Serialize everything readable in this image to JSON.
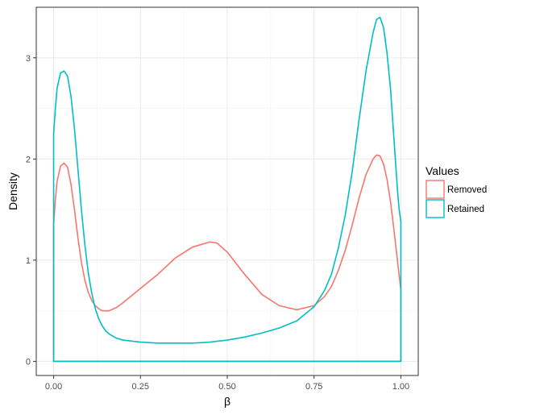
{
  "chart_data": {
    "type": "area",
    "title": "",
    "xlabel": "β",
    "ylabel": "Density",
    "xlim": [
      -0.05,
      1.05
    ],
    "ylim": [
      -0.14,
      3.5
    ],
    "xticks": [
      0.0,
      0.25,
      0.5,
      0.75,
      1.0
    ],
    "xtick_labels": [
      "0.00",
      "0.25",
      "0.50",
      "0.75",
      "1.00"
    ],
    "yticks": [
      0,
      1,
      2,
      3
    ],
    "ytick_labels": [
      "0",
      "1",
      "2",
      "3"
    ],
    "grid": true,
    "legend": {
      "title": "Values",
      "position": "right"
    },
    "series": [
      {
        "name": "Removed",
        "color": "#F8766D",
        "x": [
          0.0,
          0.005,
          0.01,
          0.02,
          0.03,
          0.04,
          0.05,
          0.06,
          0.07,
          0.08,
          0.09,
          0.1,
          0.11,
          0.12,
          0.13,
          0.14,
          0.16,
          0.18,
          0.2,
          0.25,
          0.3,
          0.35,
          0.4,
          0.45,
          0.47,
          0.5,
          0.55,
          0.6,
          0.65,
          0.7,
          0.75,
          0.78,
          0.8,
          0.82,
          0.84,
          0.86,
          0.88,
          0.9,
          0.92,
          0.93,
          0.94,
          0.95,
          0.96,
          0.97,
          0.98,
          0.99,
          0.995,
          1.0
        ],
        "y": [
          1.35,
          1.6,
          1.78,
          1.93,
          1.96,
          1.92,
          1.75,
          1.5,
          1.22,
          0.98,
          0.8,
          0.68,
          0.6,
          0.55,
          0.52,
          0.5,
          0.5,
          0.53,
          0.58,
          0.72,
          0.86,
          1.02,
          1.13,
          1.18,
          1.17,
          1.08,
          0.86,
          0.66,
          0.55,
          0.51,
          0.55,
          0.64,
          0.74,
          0.9,
          1.1,
          1.35,
          1.62,
          1.85,
          2.0,
          2.04,
          2.03,
          1.95,
          1.8,
          1.58,
          1.3,
          1.0,
          0.85,
          0.7
        ]
      },
      {
        "name": "Retained",
        "color": "#00BFC4",
        "x": [
          0.0,
          0.005,
          0.01,
          0.02,
          0.03,
          0.04,
          0.05,
          0.06,
          0.07,
          0.08,
          0.09,
          0.1,
          0.11,
          0.12,
          0.13,
          0.14,
          0.15,
          0.16,
          0.18,
          0.2,
          0.25,
          0.3,
          0.35,
          0.4,
          0.45,
          0.5,
          0.55,
          0.6,
          0.65,
          0.7,
          0.75,
          0.78,
          0.8,
          0.82,
          0.84,
          0.86,
          0.88,
          0.9,
          0.92,
          0.93,
          0.94,
          0.95,
          0.96,
          0.97,
          0.98,
          0.99,
          0.995,
          1.0
        ],
        "y": [
          2.25,
          2.5,
          2.7,
          2.85,
          2.87,
          2.82,
          2.62,
          2.3,
          1.9,
          1.5,
          1.15,
          0.87,
          0.67,
          0.52,
          0.42,
          0.35,
          0.3,
          0.27,
          0.23,
          0.21,
          0.19,
          0.18,
          0.18,
          0.18,
          0.19,
          0.21,
          0.24,
          0.28,
          0.33,
          0.4,
          0.54,
          0.7,
          0.86,
          1.12,
          1.45,
          1.88,
          2.4,
          2.88,
          3.25,
          3.38,
          3.4,
          3.3,
          3.05,
          2.7,
          2.2,
          1.7,
          1.5,
          1.38
        ]
      }
    ]
  }
}
